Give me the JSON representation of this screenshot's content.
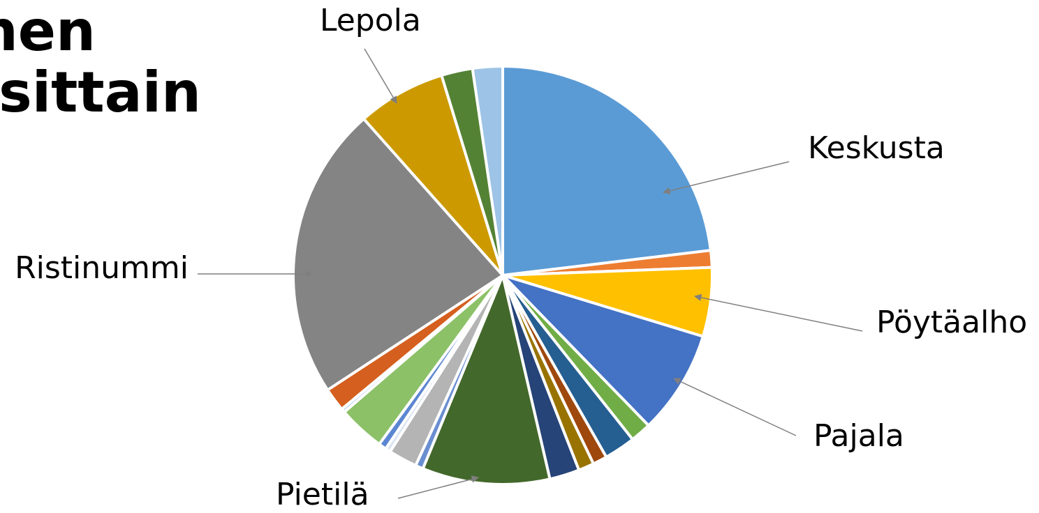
{
  "chart_data": {
    "type": "pie",
    "title": [
      "nen",
      "osittain"
    ],
    "categories": [
      "Keskusta",
      null,
      "Pöytäalho",
      "Pajala",
      null,
      null,
      null,
      null,
      null,
      "Pietilä",
      null,
      null,
      null,
      null,
      null,
      null,
      null,
      "Ristinummi",
      "Lepola",
      null,
      null
    ],
    "values": [
      23,
      1.3,
      5.3,
      8,
      1.6,
      2.4,
      1.1,
      1.2,
      2.3,
      9.8,
      0.6,
      2.2,
      0.4,
      0.6,
      3.6,
      0.3,
      1.8,
      22.6,
      6.8,
      2.4,
      2.3
    ],
    "colors": [
      "#5b9bd5",
      "#ed7d31",
      "#ffc000",
      "#4472c4",
      "#70ad47",
      "#255e91",
      "#9e480e",
      "#997300",
      "#264478",
      "#43682b",
      "#698ed0",
      "#b4b4b4",
      "#dbe5f1",
      "#5b86d1",
      "#8cc168",
      "#c5d9f1",
      "#d55f1e",
      "#848484",
      "#cc9a00",
      "#548235",
      "#9dc3e6"
    ]
  }
}
